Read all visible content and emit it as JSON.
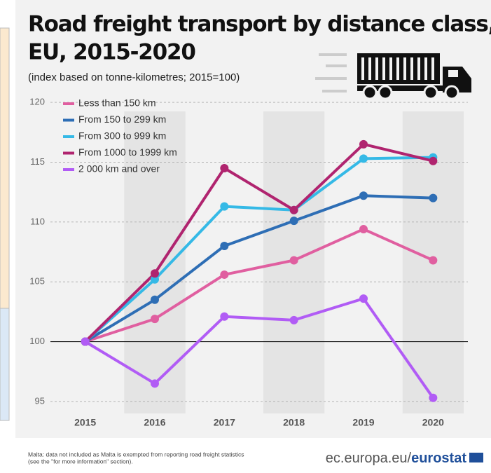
{
  "chart_data": {
    "type": "line",
    "title": [
      "Road freight transport by distance class,",
      "EU, 2015-2020"
    ],
    "subtitle": "(index based on tonne-kilometres; 2015=100)",
    "categories": [
      "2015",
      "2016",
      "2017",
      "2018",
      "2019",
      "2020"
    ],
    "series": [
      {
        "name": "Less than 150 km",
        "color": "#e05fa0",
        "values": [
          100,
          101.9,
          105.6,
          106.8,
          109.4,
          106.8
        ]
      },
      {
        "name": "From 150 to 299 km",
        "color": "#2e6eb5",
        "values": [
          100,
          103.5,
          108.0,
          110.1,
          112.2,
          112.0
        ]
      },
      {
        "name": "From 300 to 999 km",
        "color": "#35b9e6",
        "values": [
          100,
          105.2,
          111.3,
          111.0,
          115.3,
          115.4
        ]
      },
      {
        "name": "From 1000 to 1999 km",
        "color": "#b0246f",
        "values": [
          100,
          105.7,
          114.5,
          111.0,
          116.5,
          115.1
        ]
      },
      {
        "name": "2 000 km and over",
        "color": "#b15cf5",
        "values": [
          100,
          96.5,
          102.1,
          101.8,
          103.6,
          95.3
        ]
      }
    ],
    "ylim": [
      94,
      121
    ],
    "yticks": [
      95,
      100,
      105,
      110,
      115,
      120
    ],
    "baseline": 100,
    "grid": true,
    "footnote": [
      "Malta: data not included as Malta is exempted from reporting road freight statistics",
      "(see the \"for more information\" section)."
    ],
    "source": [
      "ec.europa.eu/",
      "eurostat"
    ]
  }
}
